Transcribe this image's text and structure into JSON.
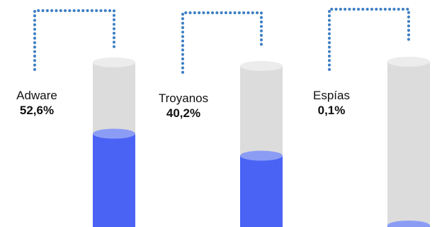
{
  "chart_data": {
    "type": "bar",
    "title": "",
    "xlabel": "",
    "ylabel": "",
    "ylim": [
      0,
      100
    ],
    "grid": false,
    "legend": "none",
    "categories": [
      "Adware",
      "Troyanos",
      "Espías"
    ],
    "values": [
      52.6,
      40.2,
      0.1
    ],
    "value_labels": [
      "52,6%",
      "40,2%",
      "0,1%"
    ]
  },
  "colors": {
    "fill": "#4a63f5",
    "fill_top": "#8b9cf5",
    "tube": "#dcdcdc",
    "tube_top": "#ececec",
    "connector": "#3d7fc4"
  }
}
